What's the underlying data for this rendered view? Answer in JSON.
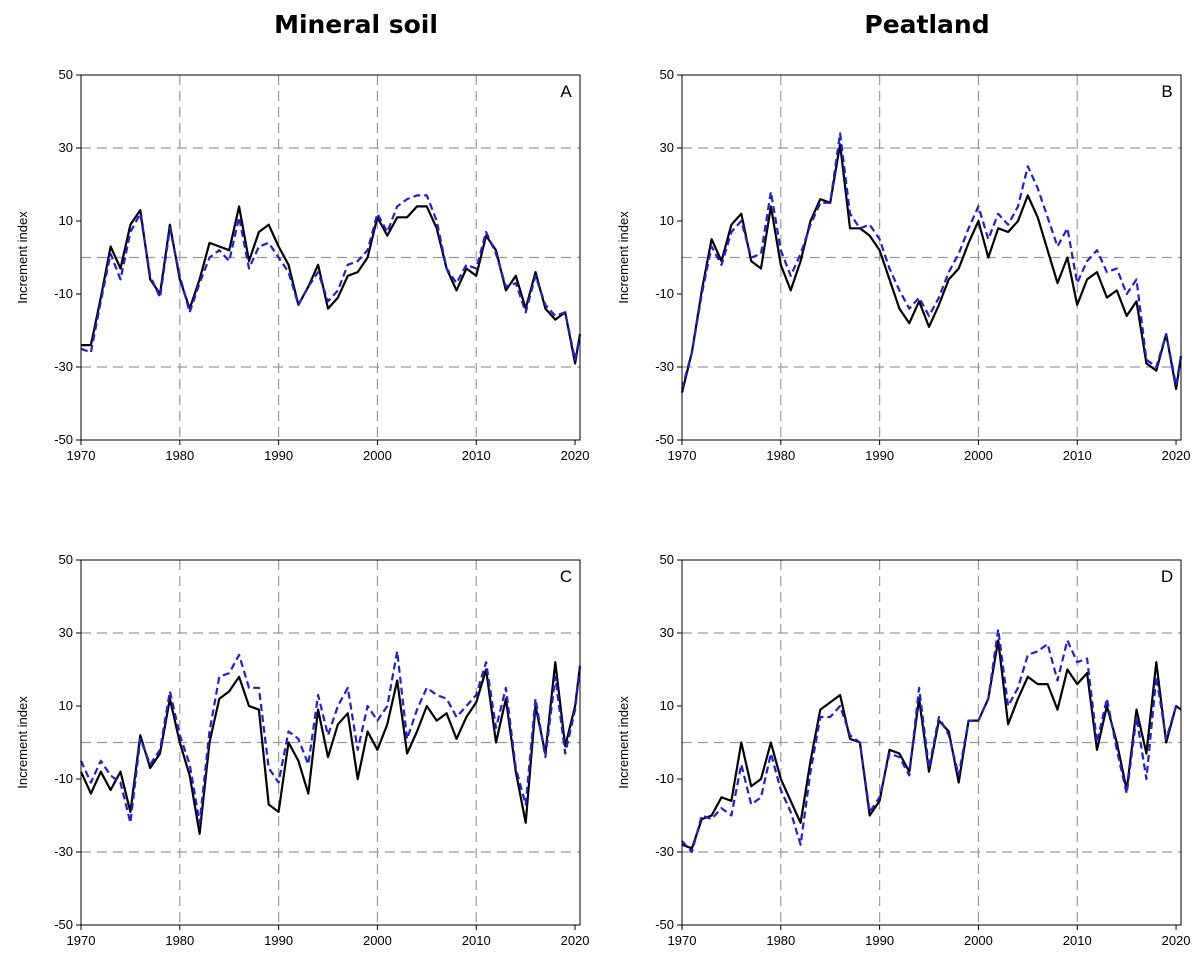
{
  "column_titles": {
    "left": "Mineral soil",
    "right": "Peatland"
  },
  "colors": {
    "series_solid": "#000000",
    "series_dashed": "#1f1fd6",
    "grid": "#9a9a9a"
  },
  "chart_data": [
    {
      "type": "line",
      "panel": "A",
      "ylabel": "Increment index",
      "xlim": [
        1970,
        2020.5
      ],
      "ylim": [
        -50,
        50
      ],
      "xticks": [
        1970,
        1980,
        1990,
        2000,
        2010,
        2020
      ],
      "yticks": [
        -50,
        -30,
        -10,
        10,
        30,
        50
      ],
      "grid_x": [
        1980,
        1990,
        2000,
        2010
      ],
      "grid_y": [
        -30,
        0,
        30
      ],
      "x": [
        1970,
        1971,
        1972,
        1973,
        1974,
        1975,
        1976,
        1977,
        1978,
        1979,
        1980,
        1981,
        1982,
        1983,
        1984,
        1985,
        1986,
        1987,
        1988,
        1989,
        1990,
        1991,
        1992,
        1993,
        1994,
        1995,
        1996,
        1997,
        1998,
        1999,
        2000,
        2001,
        2002,
        2003,
        2004,
        2005,
        2006,
        2007,
        2008,
        2009,
        2010,
        2011,
        2012,
        2013,
        2014,
        2015,
        2016,
        2017,
        2018,
        2019,
        2020,
        2020.5
      ],
      "series": [
        {
          "style": "solid",
          "values": [
            -24,
            -24,
            -11,
            3,
            -3,
            9,
            13,
            -6,
            -10,
            9,
            -6,
            -14,
            -6,
            4,
            3,
            2,
            14,
            -1,
            7,
            9,
            3,
            -2,
            -13,
            -8,
            -2,
            -14,
            -11,
            -5,
            -4,
            0,
            11,
            6,
            11,
            11,
            14,
            14,
            8,
            -3,
            -9,
            -3,
            -5,
            6,
            2,
            -9,
            -5,
            -14,
            -4,
            -14,
            -17,
            -15,
            -29,
            -21
          ]
        },
        {
          "style": "dashed",
          "values": [
            -25,
            -26,
            -12,
            1,
            -6,
            7,
            12,
            -5,
            -11,
            8,
            -5,
            -15,
            -7,
            0,
            2,
            -1,
            11,
            -3,
            3,
            4,
            0,
            -4,
            -13,
            -8,
            -4,
            -12,
            -9,
            -2,
            -1,
            2,
            12,
            7,
            14,
            16,
            17,
            17,
            10,
            -3,
            -7,
            -2,
            -3,
            7,
            1,
            -8,
            -7,
            -15,
            -5,
            -13,
            -16,
            -15,
            -28,
            -21
          ]
        }
      ]
    },
    {
      "type": "line",
      "panel": "B",
      "ylabel": "Increment index",
      "xlim": [
        1970,
        2020.5
      ],
      "ylim": [
        -50,
        50
      ],
      "xticks": [
        1970,
        1980,
        1990,
        2000,
        2010,
        2020
      ],
      "yticks": [
        -50,
        -30,
        -10,
        10,
        30,
        50
      ],
      "grid_x": [
        1980,
        1990,
        2000,
        2010
      ],
      "grid_y": [
        -30,
        0,
        30
      ],
      "x": [
        1970,
        1971,
        1972,
        1973,
        1974,
        1975,
        1976,
        1977,
        1978,
        1979,
        1980,
        1981,
        1982,
        1983,
        1984,
        1985,
        1986,
        1987,
        1988,
        1989,
        1990,
        1991,
        1992,
        1993,
        1994,
        1995,
        1996,
        1997,
        1998,
        1999,
        2000,
        2001,
        2002,
        2003,
        2004,
        2005,
        2006,
        2007,
        2008,
        2009,
        2010,
        2011,
        2012,
        2013,
        2014,
        2015,
        2016,
        2017,
        2018,
        2019,
        2020,
        2020.5
      ],
      "series": [
        {
          "style": "solid",
          "values": [
            -37,
            -26,
            -9,
            5,
            -1,
            9,
            12,
            -1,
            -3,
            14,
            -2,
            -9,
            -1,
            10,
            16,
            15,
            31,
            8,
            8,
            6,
            2,
            -6,
            -14,
            -18,
            -12,
            -19,
            -13,
            -6,
            -3,
            4,
            10,
            0,
            8,
            7,
            10,
            17,
            11,
            2,
            -7,
            0,
            -13,
            -6,
            -4,
            -11,
            -9,
            -16,
            -12,
            -29,
            -31,
            -21,
            -36,
            -27
          ]
        },
        {
          "style": "dashed",
          "values": [
            -36,
            -26,
            -10,
            3,
            -2,
            7,
            10,
            0,
            1,
            18,
            2,
            -5,
            1,
            9,
            15,
            15,
            34,
            12,
            8,
            9,
            5,
            -3,
            -9,
            -14,
            -11,
            -16,
            -11,
            -4,
            1,
            8,
            14,
            5,
            12,
            9,
            14,
            25,
            19,
            11,
            3,
            8,
            -7,
            -1,
            2,
            -4,
            -3,
            -10,
            -6,
            -28,
            -30,
            -21,
            -35,
            -27
          ]
        }
      ]
    },
    {
      "type": "line",
      "panel": "C",
      "ylabel": "Increment index",
      "xlim": [
        1970,
        2020.5
      ],
      "ylim": [
        -50,
        50
      ],
      "xticks": [
        1970,
        1980,
        1990,
        2000,
        2010,
        2020
      ],
      "yticks": [
        -50,
        -30,
        -10,
        10,
        30,
        50
      ],
      "grid_x": [
        1980,
        1990,
        2000,
        2010
      ],
      "grid_y": [
        -30,
        0,
        30
      ],
      "x": [
        1970,
        1971,
        1972,
        1973,
        1974,
        1975,
        1976,
        1977,
        1978,
        1979,
        1980,
        1981,
        1982,
        1983,
        1984,
        1985,
        1986,
        1987,
        1988,
        1989,
        1990,
        1991,
        1992,
        1993,
        1994,
        1995,
        1996,
        1997,
        1998,
        1999,
        2000,
        2001,
        2002,
        2003,
        2004,
        2005,
        2006,
        2007,
        2008,
        2009,
        2010,
        2011,
        2012,
        2013,
        2014,
        2015,
        2016,
        2017,
        2018,
        2019,
        2020,
        2020.5
      ],
      "series": [
        {
          "style": "solid",
          "values": [
            -8,
            -14,
            -8,
            -13,
            -8,
            -19,
            2,
            -7,
            -3,
            12,
            0,
            -9,
            -25,
            0,
            12,
            14,
            18,
            10,
            9,
            -17,
            -19,
            0,
            -5,
            -14,
            9,
            -4,
            5,
            8,
            -10,
            3,
            -2,
            5,
            17,
            -3,
            3,
            10,
            6,
            8,
            1,
            7,
            11,
            20,
            0,
            12,
            -8,
            -22,
            10,
            -3,
            22,
            -1,
            10,
            21
          ]
        },
        {
          "style": "dashed",
          "values": [
            -5,
            -11,
            -5,
            -9,
            -11,
            -22,
            1,
            -6,
            -2,
            14,
            2,
            -6,
            -22,
            3,
            18,
            19,
            24,
            15,
            15,
            -7,
            -11,
            3,
            1,
            -6,
            13,
            2,
            10,
            15,
            -2,
            10,
            6,
            10,
            25,
            1,
            9,
            15,
            13,
            12,
            7,
            10,
            13,
            22,
            4,
            15,
            -7,
            -17,
            12,
            -4,
            18,
            -3,
            9,
            21
          ]
        }
      ]
    },
    {
      "type": "line",
      "panel": "D",
      "ylabel": "Increment index",
      "xlim": [
        1970,
        2020.5
      ],
      "ylim": [
        -50,
        50
      ],
      "xticks": [
        1970,
        1980,
        1990,
        2000,
        2010,
        2020
      ],
      "yticks": [
        -50,
        -30,
        -10,
        10,
        30,
        50
      ],
      "grid_x": [
        1980,
        1990,
        2000,
        2010
      ],
      "grid_y": [
        -30,
        0,
        30
      ],
      "x": [
        1970,
        1971,
        1972,
        1973,
        1974,
        1975,
        1976,
        1977,
        1978,
        1979,
        1980,
        1981,
        1982,
        1983,
        1984,
        1985,
        1986,
        1987,
        1988,
        1989,
        1990,
        1991,
        1992,
        1993,
        1994,
        1995,
        1996,
        1997,
        1998,
        1999,
        2000,
        2001,
        2002,
        2003,
        2004,
        2005,
        2006,
        2007,
        2008,
        2009,
        2010,
        2011,
        2012,
        2013,
        2014,
        2015,
        2016,
        2017,
        2018,
        2019,
        2020,
        2020.5
      ],
      "series": [
        {
          "style": "solid",
          "values": [
            -28,
            -29,
            -21,
            -20,
            -15,
            -16,
            0,
            -12,
            -10,
            0,
            -10,
            -16,
            -22,
            -5,
            9,
            11,
            13,
            1,
            0,
            -20,
            -16,
            -2,
            -3,
            -8,
            12,
            -8,
            6,
            3,
            -11,
            6,
            6,
            12,
            28,
            5,
            12,
            18,
            16,
            16,
            9,
            20,
            16,
            19,
            -2,
            10,
            0,
            -13,
            9,
            -3,
            22,
            0,
            10,
            9
          ]
        },
        {
          "style": "dashed",
          "values": [
            -27,
            -30,
            -20,
            -21,
            -18,
            -20,
            -6,
            -17,
            -15,
            -3,
            -13,
            -19,
            -28,
            -8,
            7,
            7,
            10,
            2,
            0,
            -19,
            -15,
            -3,
            -4,
            -9,
            15,
            -7,
            7,
            2,
            -9,
            6,
            6,
            12,
            31,
            10,
            15,
            24,
            25,
            27,
            17,
            28,
            22,
            23,
            0,
            12,
            -2,
            -14,
            7,
            -10,
            18,
            1,
            10,
            10
          ]
        }
      ]
    }
  ]
}
